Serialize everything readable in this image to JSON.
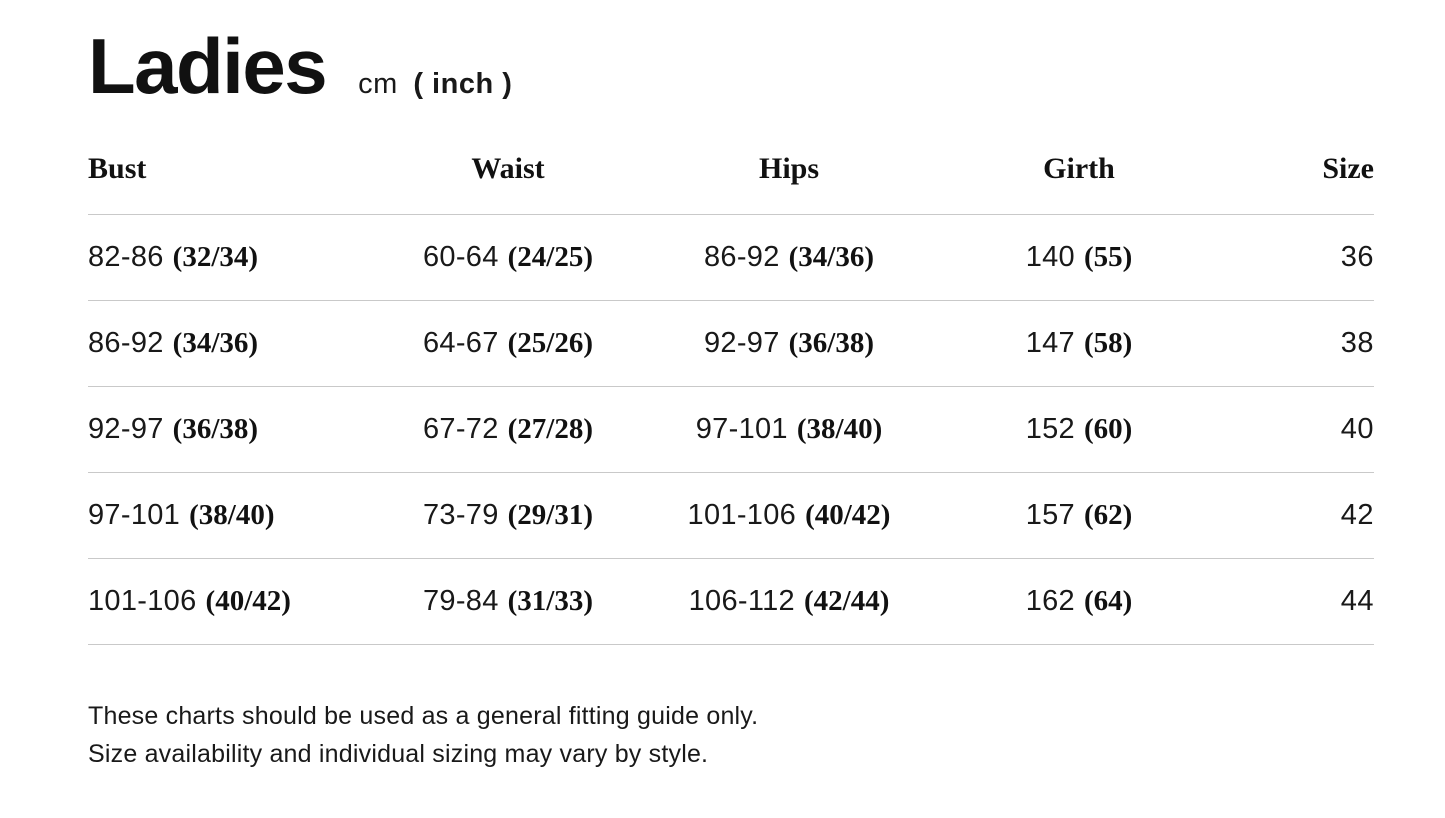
{
  "header": {
    "title": "Ladies",
    "unit_cm": "cm",
    "unit_inch": "( inch )"
  },
  "table": {
    "columns": [
      {
        "label": "Bust"
      },
      {
        "label": "Waist"
      },
      {
        "label": "Hips"
      },
      {
        "label": "Girth"
      },
      {
        "label": "Size"
      }
    ],
    "rows": [
      {
        "bust_cm": "82-86",
        "bust_in": "(32/34)",
        "waist_cm": "60-64",
        "waist_in": "(24/25)",
        "hips_cm": "86-92",
        "hips_in": "(34/36)",
        "girth_cm": "140",
        "girth_in": "(55)",
        "size": "36"
      },
      {
        "bust_cm": "86-92",
        "bust_in": "(34/36)",
        "waist_cm": "64-67",
        "waist_in": "(25/26)",
        "hips_cm": "92-97",
        "hips_in": "(36/38)",
        "girth_cm": "147",
        "girth_in": "(58)",
        "size": "38"
      },
      {
        "bust_cm": "92-97",
        "bust_in": "(36/38)",
        "waist_cm": "67-72",
        "waist_in": "(27/28)",
        "hips_cm": "97-101",
        "hips_in": "(38/40)",
        "girth_cm": "152",
        "girth_in": "(60)",
        "size": "40"
      },
      {
        "bust_cm": "97-101",
        "bust_in": "(38/40)",
        "waist_cm": "73-79",
        "waist_in": "(29/31)",
        "hips_cm": "101-106",
        "hips_in": "(40/42)",
        "girth_cm": "157",
        "girth_in": "(62)",
        "size": "42"
      },
      {
        "bust_cm": "101-106",
        "bust_in": "(40/42)",
        "waist_cm": "79-84",
        "waist_in": "(31/33)",
        "hips_cm": "106-112",
        "hips_in": "(42/44)",
        "girth_cm": "162",
        "girth_in": "(64)",
        "size": "44"
      }
    ]
  },
  "footer": {
    "line1": "These charts should be used as a general fitting guide only.",
    "line2": "Size availability and individual sizing may vary by style."
  },
  "colors": {
    "text": "#191919",
    "divider": "#c9c9c9",
    "background": "#ffffff"
  }
}
